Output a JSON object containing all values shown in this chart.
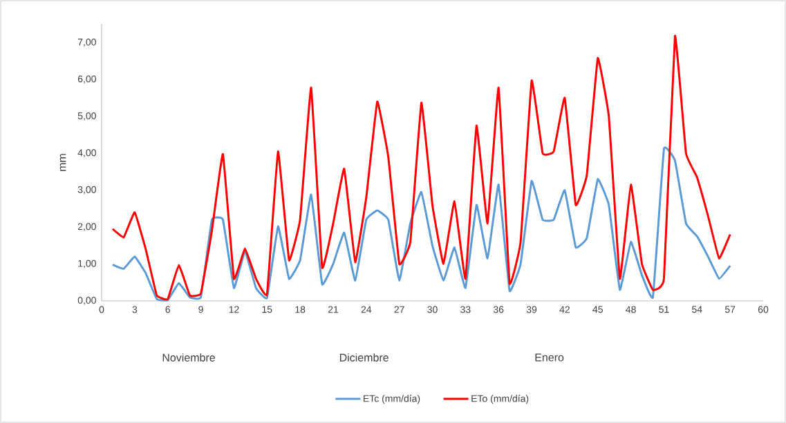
{
  "chart_data": {
    "type": "line",
    "ylabel": "mm",
    "x": [
      1,
      2,
      3,
      4,
      5,
      6,
      7,
      8,
      9,
      10,
      11,
      12,
      13,
      14,
      15,
      16,
      17,
      18,
      19,
      20,
      21,
      22,
      23,
      24,
      25,
      26,
      27,
      28,
      29,
      30,
      31,
      32,
      33,
      34,
      35,
      36,
      37,
      38,
      39,
      40,
      41,
      42,
      43,
      44,
      45,
      46,
      47,
      48,
      49,
      50,
      51,
      52,
      53,
      54,
      55,
      56,
      57
    ],
    "series": [
      {
        "name": "ETc (mm/día)",
        "color": "#5b9bd5",
        "values": [
          0.98,
          0.87,
          1.2,
          0.75,
          0.05,
          0.02,
          0.48,
          0.1,
          0.1,
          2.2,
          2.2,
          0.35,
          1.35,
          0.35,
          0.08,
          2.02,
          0.6,
          1.1,
          2.88,
          0.45,
          1.0,
          1.85,
          0.55,
          2.2,
          2.45,
          2.2,
          0.55,
          2.1,
          2.95,
          1.5,
          0.55,
          1.45,
          0.35,
          2.6,
          1.15,
          3.15,
          0.27,
          1.0,
          3.25,
          2.2,
          2.2,
          3.0,
          1.45,
          1.7,
          3.3,
          2.6,
          0.3,
          1.6,
          0.7,
          0.1,
          4.12,
          3.8,
          2.1,
          1.75,
          1.2,
          0.6,
          0.95
        ]
      },
      {
        "name": "ETo (mm/día)",
        "color": "#ff0000",
        "values": [
          1.95,
          1.72,
          2.4,
          1.4,
          0.15,
          0.05,
          0.97,
          0.15,
          0.2,
          1.9,
          3.98,
          0.6,
          1.42,
          0.6,
          0.18,
          4.05,
          1.1,
          2.2,
          5.78,
          0.9,
          2.1,
          3.58,
          1.05,
          2.8,
          5.4,
          3.9,
          1.0,
          1.6,
          5.37,
          2.6,
          1.0,
          2.7,
          0.6,
          4.75,
          2.1,
          5.78,
          0.48,
          1.6,
          5.97,
          4.0,
          4.05,
          5.5,
          2.6,
          3.4,
          6.58,
          5.0,
          0.6,
          3.15,
          1.0,
          0.3,
          0.6,
          7.18,
          4.0,
          3.35,
          2.3,
          1.15,
          1.8
        ]
      }
    ],
    "xlim": [
      0,
      60
    ],
    "xticks": [
      0,
      3,
      6,
      9,
      12,
      15,
      18,
      21,
      24,
      27,
      30,
      33,
      36,
      39,
      42,
      45,
      48,
      51,
      54,
      57,
      60
    ],
    "ylim": [
      0,
      7.5
    ],
    "yticks": [
      {
        "value": 0,
        "label": "0,00"
      },
      {
        "value": 1,
        "label": "1,00"
      },
      {
        "value": 2,
        "label": "2,00"
      },
      {
        "value": 3,
        "label": "3,00"
      },
      {
        "value": 4,
        "label": "4,00"
      },
      {
        "value": 5,
        "label": "5,00"
      },
      {
        "value": 6,
        "label": "6,00"
      },
      {
        "value": 7,
        "label": "7,00"
      }
    ],
    "annotations": [
      "Noviembre",
      "Diciembre",
      "Enero"
    ],
    "grid": false,
    "legend": "bottom",
    "line_style": "solid",
    "marker": "none"
  }
}
